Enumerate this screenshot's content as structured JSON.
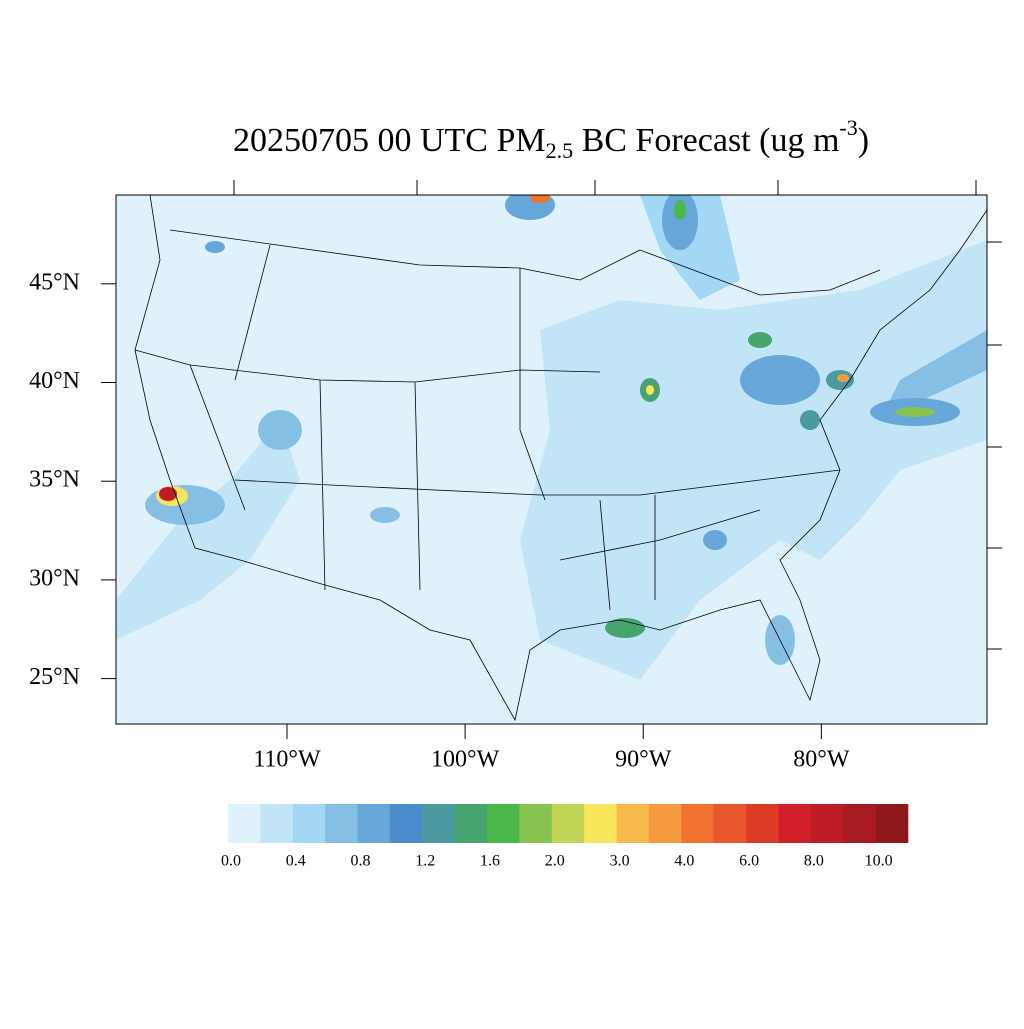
{
  "title": {
    "main": "20250705 00 UTC PM",
    "sub": "2.5",
    "mid": " BC Forecast (ug m",
    "sup": "-3",
    "end": ")"
  },
  "map": {
    "latlim": [
      22.7,
      49.5
    ],
    "lonlim": [
      -119.6,
      -70.7
    ],
    "lat_ticks": [
      {
        "value": 45,
        "label": "45°N"
      },
      {
        "value": 40,
        "label": "40°N"
      },
      {
        "value": 35,
        "label": "35°N"
      },
      {
        "value": 30,
        "label": "30°N"
      },
      {
        "value": 25,
        "label": "25°N"
      }
    ],
    "lon_ticks": [
      {
        "value": -110,
        "label": "110°W"
      },
      {
        "value": -100,
        "label": "100°W"
      },
      {
        "value": -90,
        "label": "90°W"
      },
      {
        "value": -80,
        "label": "80°W"
      }
    ]
  },
  "colorbar": {
    "colors": [
      "#dff1fa",
      "#c1e4f6",
      "#a3d7f3",
      "#86bfe4",
      "#67a6d8",
      "#4a8bcb",
      "#4a9aa0",
      "#48a46e",
      "#4bb748",
      "#86c34f",
      "#c2d455",
      "#f7e55a",
      "#f7b94a",
      "#f59a3f",
      "#f17130",
      "#e9552c",
      "#de3b27",
      "#d21f2a",
      "#be1d27",
      "#a81b22",
      "#8e171b"
    ],
    "ticks": [
      {
        "value": 0,
        "label": "0.0"
      },
      {
        "value": 0.4,
        "label": "0.4"
      },
      {
        "value": 0.8,
        "label": "0.8"
      },
      {
        "value": 1.2,
        "label": "1.2"
      },
      {
        "value": 1.6,
        "label": "1.6"
      },
      {
        "value": 2,
        "label": "2.0"
      },
      {
        "value": 3,
        "label": "3.0"
      },
      {
        "value": 4,
        "label": "4.0"
      },
      {
        "value": 6,
        "label": "6.0"
      },
      {
        "value": 8,
        "label": "8.0"
      },
      {
        "value": 10,
        "label": "10.0"
      }
    ]
  }
}
